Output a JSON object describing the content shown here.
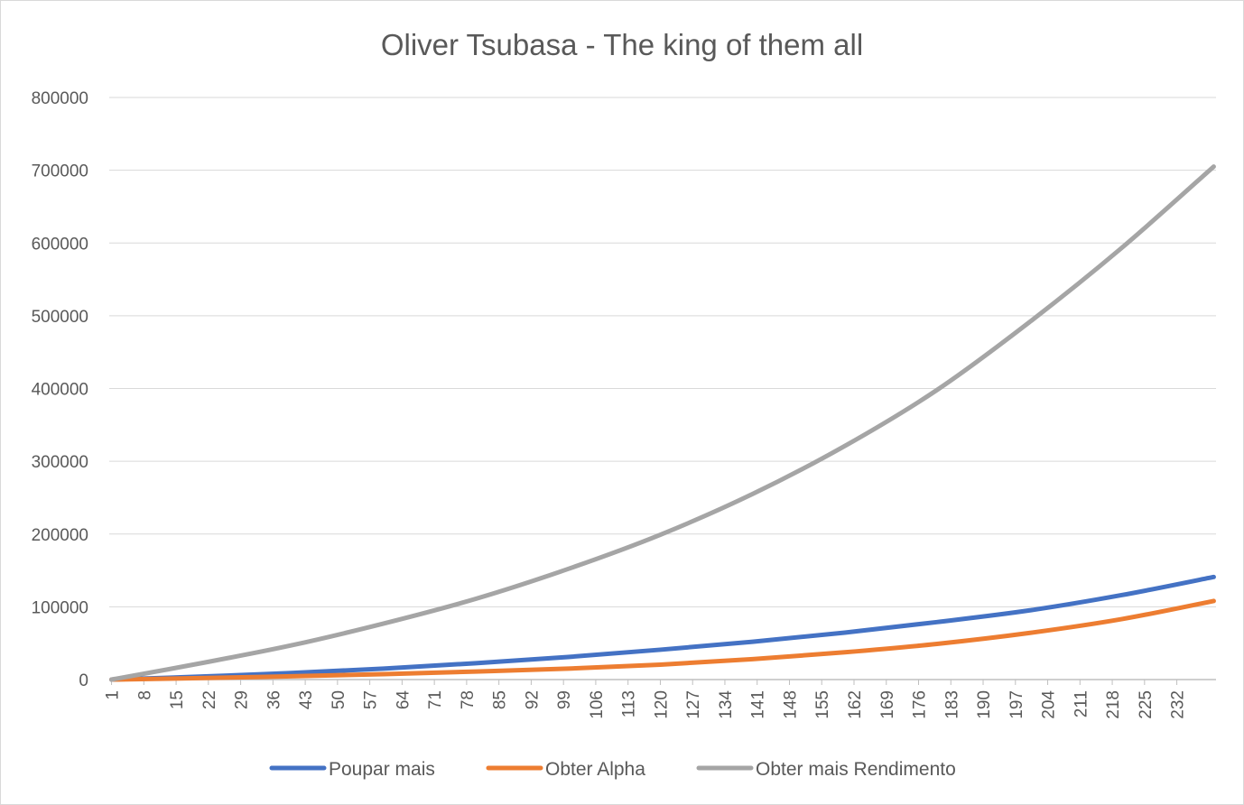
{
  "chart_data": {
    "type": "line",
    "title": "Oliver Tsubasa - The king of them all",
    "xlabel": "",
    "ylabel": "",
    "x_range": [
      1,
      240
    ],
    "x_tick_labels": [
      "1",
      "8",
      "15",
      "22",
      "29",
      "36",
      "43",
      "50",
      "57",
      "64",
      "71",
      "78",
      "85",
      "92",
      "99",
      "106",
      "113",
      "120",
      "127",
      "134",
      "141",
      "148",
      "155",
      "162",
      "169",
      "176",
      "183",
      "190",
      "197",
      "204",
      "211",
      "218",
      "225",
      "232"
    ],
    "ylim": [
      0,
      800000
    ],
    "y_tick_labels": [
      "0",
      "100000",
      "200000",
      "300000",
      "400000",
      "500000",
      "600000",
      "700000",
      "800000"
    ],
    "grid": "horizontal",
    "legend_position": "bottom",
    "series": [
      {
        "name": "Poupar mais",
        "color": "#4472C4",
        "points": [
          [
            1,
            0
          ],
          [
            20,
            4000
          ],
          [
            40,
            9000
          ],
          [
            60,
            15000
          ],
          [
            80,
            22500
          ],
          [
            100,
            31000
          ],
          [
            120,
            41000
          ],
          [
            140,
            52000
          ],
          [
            160,
            64500
          ],
          [
            180,
            79000
          ],
          [
            200,
            95000
          ],
          [
            220,
            116000
          ],
          [
            240,
            141000
          ]
        ]
      },
      {
        "name": "Obter Alpha",
        "color": "#ED7D31",
        "points": [
          [
            1,
            0
          ],
          [
            20,
            2000
          ],
          [
            40,
            4500
          ],
          [
            60,
            7500
          ],
          [
            80,
            11000
          ],
          [
            100,
            15000
          ],
          [
            120,
            20500
          ],
          [
            140,
            28000
          ],
          [
            160,
            37500
          ],
          [
            180,
            49000
          ],
          [
            200,
            64000
          ],
          [
            220,
            83000
          ],
          [
            240,
            108000
          ]
        ]
      },
      {
        "name": "Obter mais Rendimento",
        "color": "#A5A5A5",
        "points": [
          [
            1,
            0
          ],
          [
            20,
            22000
          ],
          [
            40,
            47000
          ],
          [
            60,
            77000
          ],
          [
            80,
            111000
          ],
          [
            100,
            152000
          ],
          [
            120,
            199000
          ],
          [
            140,
            255000
          ],
          [
            160,
            321000
          ],
          [
            180,
            398000
          ],
          [
            200,
            491000
          ],
          [
            220,
            593000
          ],
          [
            240,
            705000
          ]
        ]
      }
    ]
  }
}
